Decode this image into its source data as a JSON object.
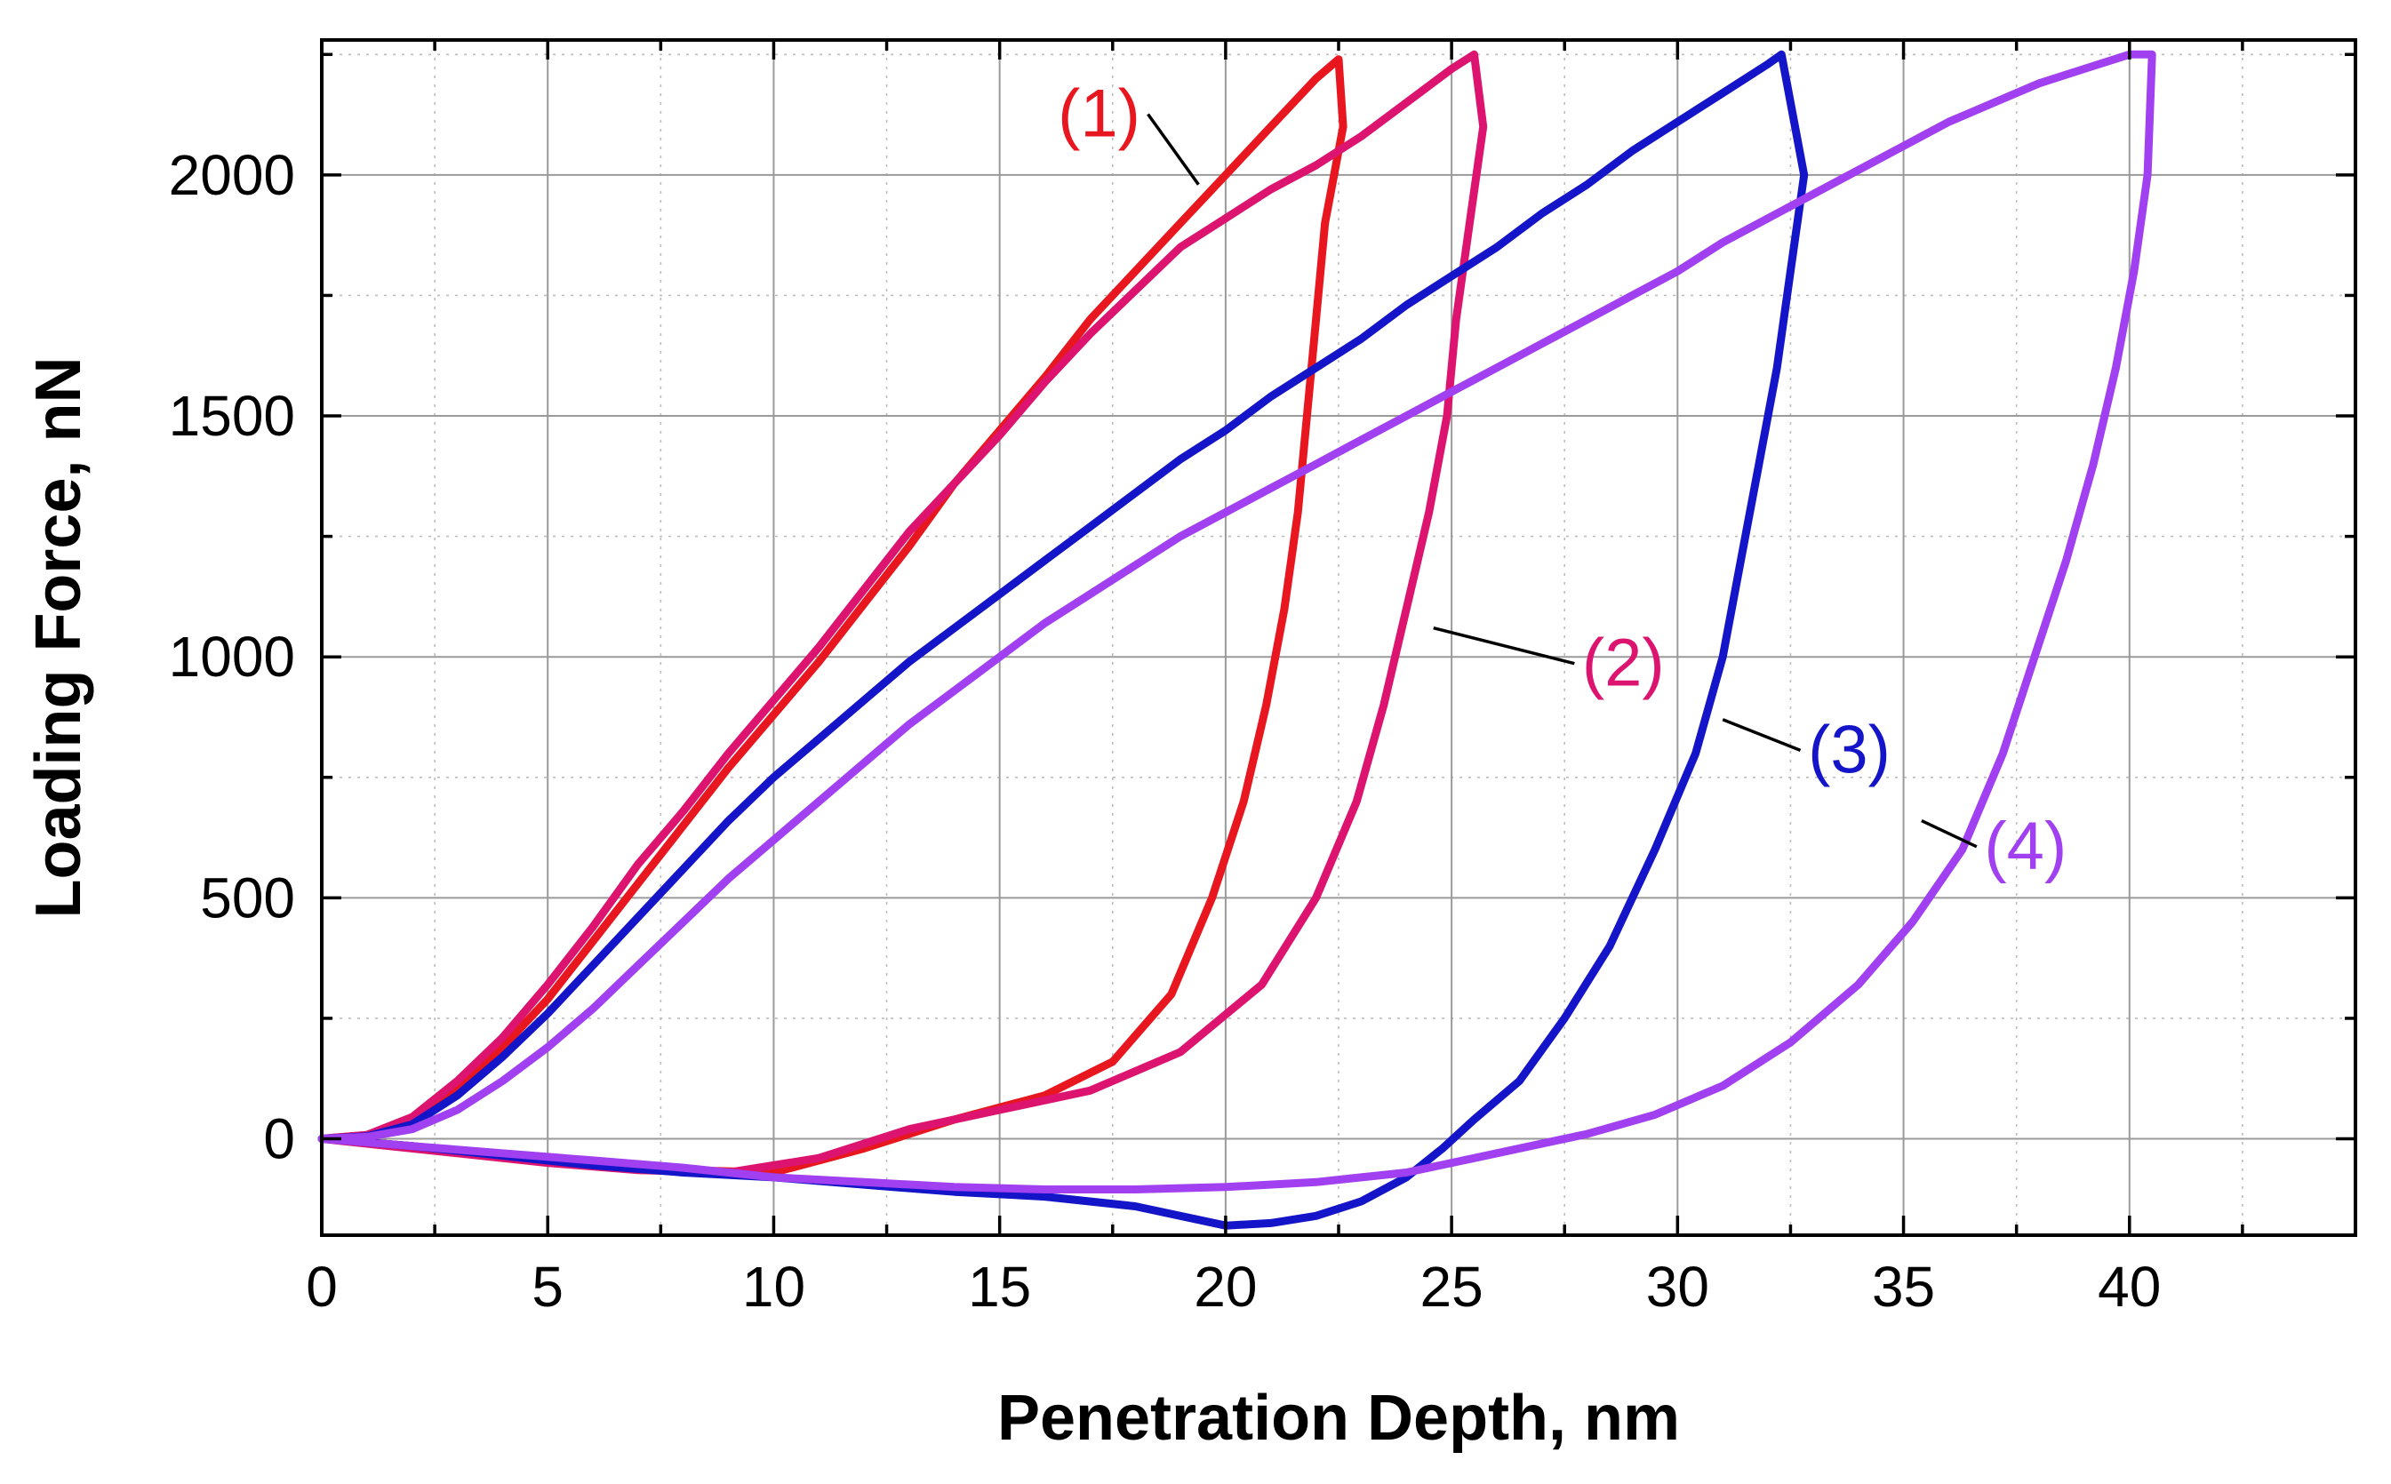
{
  "chart_data": {
    "type": "line",
    "xlabel": "Penetration Depth, nm",
    "ylabel": "Loading Force, nN",
    "xlim": [
      0,
      45
    ],
    "ylim": [
      -200,
      2280
    ],
    "xticks": [
      0,
      5,
      10,
      15,
      20,
      25,
      30,
      35,
      40
    ],
    "yticks": [
      0,
      500,
      1000,
      1500,
      2000
    ],
    "grid": true,
    "series": [
      {
        "name": "(1)",
        "color": "#e8171f",
        "label_text": "(1)",
        "label_at": [
          17.2,
          2080
        ],
        "leader_to": [
          19.4,
          1980
        ],
        "loading": [
          [
            0,
            0
          ],
          [
            1,
            8
          ],
          [
            2,
            40
          ],
          [
            3,
            110
          ],
          [
            4,
            190
          ],
          [
            5,
            290
          ],
          [
            6,
            410
          ],
          [
            7,
            530
          ],
          [
            8,
            650
          ],
          [
            9,
            770
          ],
          [
            10,
            880
          ],
          [
            11,
            990
          ],
          [
            12,
            1110
          ],
          [
            13,
            1230
          ],
          [
            14,
            1360
          ],
          [
            15,
            1470
          ],
          [
            16,
            1580
          ],
          [
            17,
            1700
          ],
          [
            18,
            1800
          ],
          [
            19,
            1900
          ],
          [
            20,
            2000
          ],
          [
            21,
            2100
          ],
          [
            22,
            2200
          ],
          [
            22.5,
            2240
          ]
        ],
        "unloading": [
          [
            22.5,
            2240
          ],
          [
            22.6,
            2100
          ],
          [
            22.2,
            1900
          ],
          [
            22.0,
            1700
          ],
          [
            21.8,
            1500
          ],
          [
            21.6,
            1300
          ],
          [
            21.3,
            1100
          ],
          [
            20.9,
            900
          ],
          [
            20.4,
            700
          ],
          [
            19.7,
            500
          ],
          [
            18.8,
            300
          ],
          [
            17.5,
            160
          ],
          [
            16.0,
            90
          ],
          [
            14.0,
            40
          ],
          [
            12.0,
            -20
          ],
          [
            10.0,
            -70
          ],
          [
            8.0,
            -65
          ],
          [
            6.0,
            -50
          ],
          [
            4.0,
            -35
          ],
          [
            2.0,
            -15
          ],
          [
            0,
            0
          ]
        ]
      },
      {
        "name": "(2)",
        "color": "#dc1470",
        "label_text": "(2)",
        "label_at": [
          28.8,
          940
        ],
        "leader_to": [
          24.6,
          1060
        ],
        "loading": [
          [
            0,
            0
          ],
          [
            1,
            8
          ],
          [
            2,
            45
          ],
          [
            3,
            120
          ],
          [
            4,
            210
          ],
          [
            5,
            320
          ],
          [
            6,
            440
          ],
          [
            7,
            570
          ],
          [
            8,
            680
          ],
          [
            9,
            800
          ],
          [
            10,
            910
          ],
          [
            11,
            1020
          ],
          [
            12,
            1140
          ],
          [
            13,
            1260
          ],
          [
            14,
            1360
          ],
          [
            15,
            1460
          ],
          [
            16,
            1570
          ],
          [
            17,
            1670
          ],
          [
            18,
            1760
          ],
          [
            19,
            1850
          ],
          [
            20,
            1910
          ],
          [
            21,
            1970
          ],
          [
            22,
            2020
          ],
          [
            23,
            2080
          ],
          [
            24,
            2150
          ],
          [
            25,
            2220
          ],
          [
            25.5,
            2250
          ]
        ],
        "unloading": [
          [
            25.8,
            2250
          ],
          [
            25.7,
            2100
          ],
          [
            25.4,
            1900
          ],
          [
            25.1,
            1700
          ],
          [
            24.9,
            1500
          ],
          [
            24.5,
            1300
          ],
          [
            24.0,
            1100
          ],
          [
            23.5,
            900
          ],
          [
            22.9,
            700
          ],
          [
            22.0,
            500
          ],
          [
            20.8,
            320
          ],
          [
            19.0,
            180
          ],
          [
            17.0,
            100
          ],
          [
            15.0,
            60
          ],
          [
            13.0,
            20
          ],
          [
            11.0,
            -40
          ],
          [
            9.0,
            -70
          ],
          [
            7.0,
            -65
          ],
          [
            5.0,
            -50
          ],
          [
            3.0,
            -30
          ],
          [
            1.0,
            -10
          ],
          [
            0,
            0
          ]
        ]
      },
      {
        "name": "(3)",
        "color": "#1414c8",
        "label_text": "(3)",
        "label_at": [
          33.8,
          760
        ],
        "leader_to": [
          31.0,
          870
        ],
        "loading": [
          [
            0,
            0
          ],
          [
            1,
            5
          ],
          [
            2,
            30
          ],
          [
            3,
            90
          ],
          [
            4,
            170
          ],
          [
            5,
            260
          ],
          [
            6,
            360
          ],
          [
            7,
            460
          ],
          [
            8,
            560
          ],
          [
            9,
            660
          ],
          [
            10,
            750
          ],
          [
            11,
            830
          ],
          [
            12,
            910
          ],
          [
            13,
            990
          ],
          [
            14,
            1060
          ],
          [
            15,
            1130
          ],
          [
            16,
            1200
          ],
          [
            17,
            1270
          ],
          [
            18,
            1340
          ],
          [
            19,
            1410
          ],
          [
            20,
            1470
          ],
          [
            21,
            1540
          ],
          [
            22,
            1600
          ],
          [
            23,
            1660
          ],
          [
            24,
            1730
          ],
          [
            25,
            1790
          ],
          [
            26,
            1850
          ],
          [
            27,
            1920
          ],
          [
            28,
            1980
          ],
          [
            29,
            2050
          ],
          [
            30,
            2110
          ],
          [
            31,
            2170
          ],
          [
            32,
            2230
          ],
          [
            32.3,
            2250
          ]
        ],
        "unloading": [
          [
            33.0,
            2250
          ],
          [
            32.8,
            2000
          ],
          [
            32.5,
            1800
          ],
          [
            32.2,
            1600
          ],
          [
            31.8,
            1400
          ],
          [
            31.4,
            1200
          ],
          [
            31.0,
            1000
          ],
          [
            30.4,
            800
          ],
          [
            29.5,
            600
          ],
          [
            28.5,
            400
          ],
          [
            27.5,
            250
          ],
          [
            26.5,
            120
          ],
          [
            25.5,
            40
          ],
          [
            24.8,
            -20
          ],
          [
            24.0,
            -80
          ],
          [
            23.0,
            -130
          ],
          [
            22.0,
            -160
          ],
          [
            21.0,
            -175
          ],
          [
            20.0,
            -180
          ],
          [
            18.0,
            -140
          ],
          [
            16.0,
            -120
          ],
          [
            14.0,
            -110
          ],
          [
            12.0,
            -95
          ],
          [
            10.0,
            -80
          ],
          [
            8.0,
            -70
          ],
          [
            6.0,
            -55
          ],
          [
            4.0,
            -35
          ],
          [
            2.0,
            -15
          ],
          [
            0,
            0
          ]
        ]
      },
      {
        "name": "(4)",
        "color": "#a040f0",
        "label_text": "(4)",
        "label_at": [
          37.7,
          560
        ],
        "leader_to": [
          35.4,
          660
        ],
        "loading": [
          [
            0,
            0
          ],
          [
            1,
            4
          ],
          [
            2,
            20
          ],
          [
            3,
            60
          ],
          [
            4,
            120
          ],
          [
            5,
            190
          ],
          [
            6,
            270
          ],
          [
            7,
            360
          ],
          [
            8,
            450
          ],
          [
            9,
            540
          ],
          [
            10,
            620
          ],
          [
            11,
            700
          ],
          [
            12,
            780
          ],
          [
            13,
            860
          ],
          [
            14,
            930
          ],
          [
            15,
            1000
          ],
          [
            16,
            1070
          ],
          [
            17,
            1130
          ],
          [
            18,
            1190
          ],
          [
            19,
            1250
          ],
          [
            20,
            1300
          ],
          [
            21,
            1350
          ],
          [
            22,
            1400
          ],
          [
            23,
            1450
          ],
          [
            24,
            1500
          ],
          [
            25,
            1550
          ],
          [
            26,
            1600
          ],
          [
            27,
            1650
          ],
          [
            28,
            1700
          ],
          [
            29,
            1750
          ],
          [
            30,
            1800
          ],
          [
            31,
            1860
          ],
          [
            32,
            1910
          ],
          [
            33,
            1960
          ],
          [
            34,
            2010
          ],
          [
            35,
            2060
          ],
          [
            36,
            2110
          ],
          [
            37,
            2150
          ],
          [
            38,
            2190
          ],
          [
            39,
            2220
          ],
          [
            40,
            2250
          ],
          [
            40.5,
            2250
          ]
        ],
        "unloading": [
          [
            40.6,
            2250
          ],
          [
            40.4,
            2000
          ],
          [
            40.1,
            1800
          ],
          [
            39.7,
            1600
          ],
          [
            39.2,
            1400
          ],
          [
            38.6,
            1200
          ],
          [
            37.9,
            1000
          ],
          [
            37.2,
            800
          ],
          [
            36.3,
            600
          ],
          [
            35.2,
            450
          ],
          [
            34.0,
            320
          ],
          [
            32.5,
            200
          ],
          [
            31.0,
            110
          ],
          [
            29.5,
            50
          ],
          [
            28.0,
            10
          ],
          [
            26.0,
            -30
          ],
          [
            24.0,
            -70
          ],
          [
            22.0,
            -90
          ],
          [
            20.0,
            -100
          ],
          [
            18.0,
            -105
          ],
          [
            16.0,
            -105
          ],
          [
            14.0,
            -100
          ],
          [
            12.0,
            -90
          ],
          [
            10.0,
            -80
          ],
          [
            8.0,
            -60
          ],
          [
            6.0,
            -45
          ],
          [
            4.0,
            -30
          ],
          [
            2.0,
            -15
          ],
          [
            0,
            0
          ]
        ]
      }
    ]
  }
}
